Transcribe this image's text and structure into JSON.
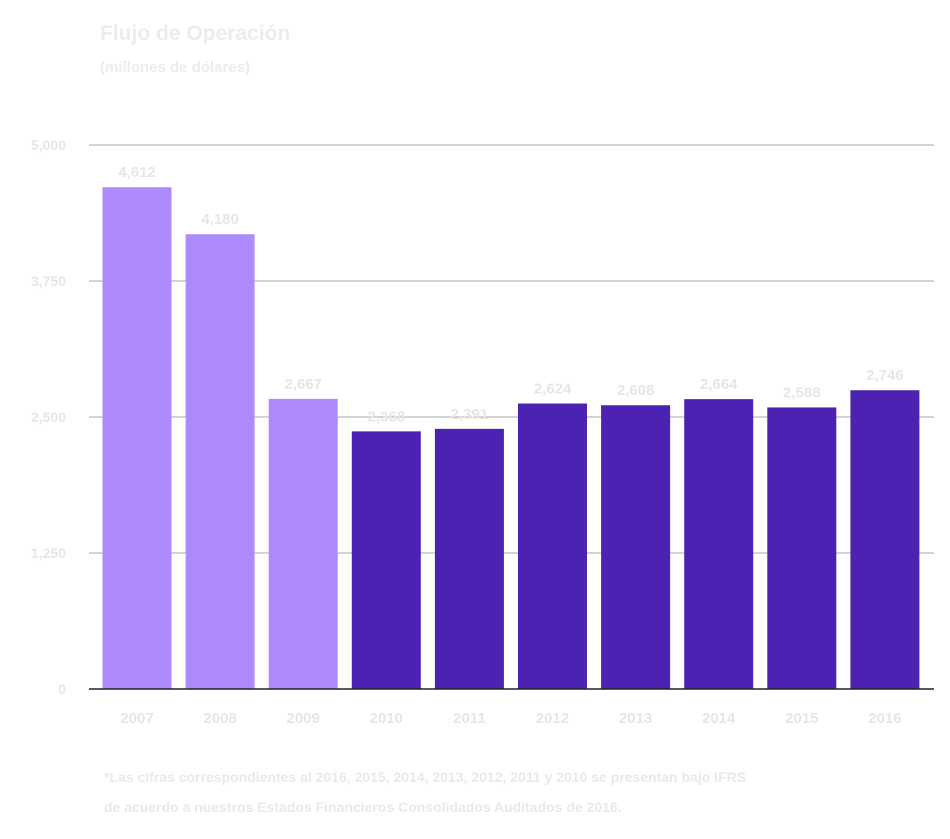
{
  "chart_data": {
    "type": "bar",
    "title": "Flujo de Operación",
    "subtitle": "(millones de dólares)",
    "xlabel": "",
    "ylabel": "",
    "ylim": [
      0,
      5000
    ],
    "yticks": [
      "0",
      "1,250",
      "2,500",
      "3,750",
      "5,000"
    ],
    "ytick_values": [
      0,
      1250,
      2500,
      3750,
      5000
    ],
    "categories": [
      "2007",
      "2008",
      "2009",
      "2010",
      "2011",
      "2012",
      "2013",
      "2014",
      "2015",
      "2016"
    ],
    "values": [
      4612,
      4180,
      2667,
      2368,
      2391,
      2624,
      2608,
      2664,
      2588,
      2746
    ],
    "labels": [
      "4,612",
      "4,180",
      "2,667",
      "2,368",
      "2,391",
      "2,624",
      "2,608",
      "2,664",
      "2,588",
      "2,746"
    ],
    "bar_colors": [
      "#ae8aff",
      "#ae8aff",
      "#ae8aff",
      "#4b22b1",
      "#4b22b1",
      "#4b22b1",
      "#4b22b1",
      "#4b22b1",
      "#4b22b1",
      "#4b22b1"
    ],
    "legend": "none",
    "grid": true
  },
  "footnote": {
    "line1": "*Las cifras correspondientes al 2016, 2015, 2014, 2013, 2012, 2011 y 2010 se presentan bajo IFRS",
    "line2": "de acuerdo a nuestros Estados Financieros Consolidados Auditados de 2016."
  },
  "colors": {
    "light_bar": "#ae8aff",
    "dark_bar": "#4b22b1",
    "grid": "#aaaaaa",
    "text": "#e6e6e6"
  }
}
